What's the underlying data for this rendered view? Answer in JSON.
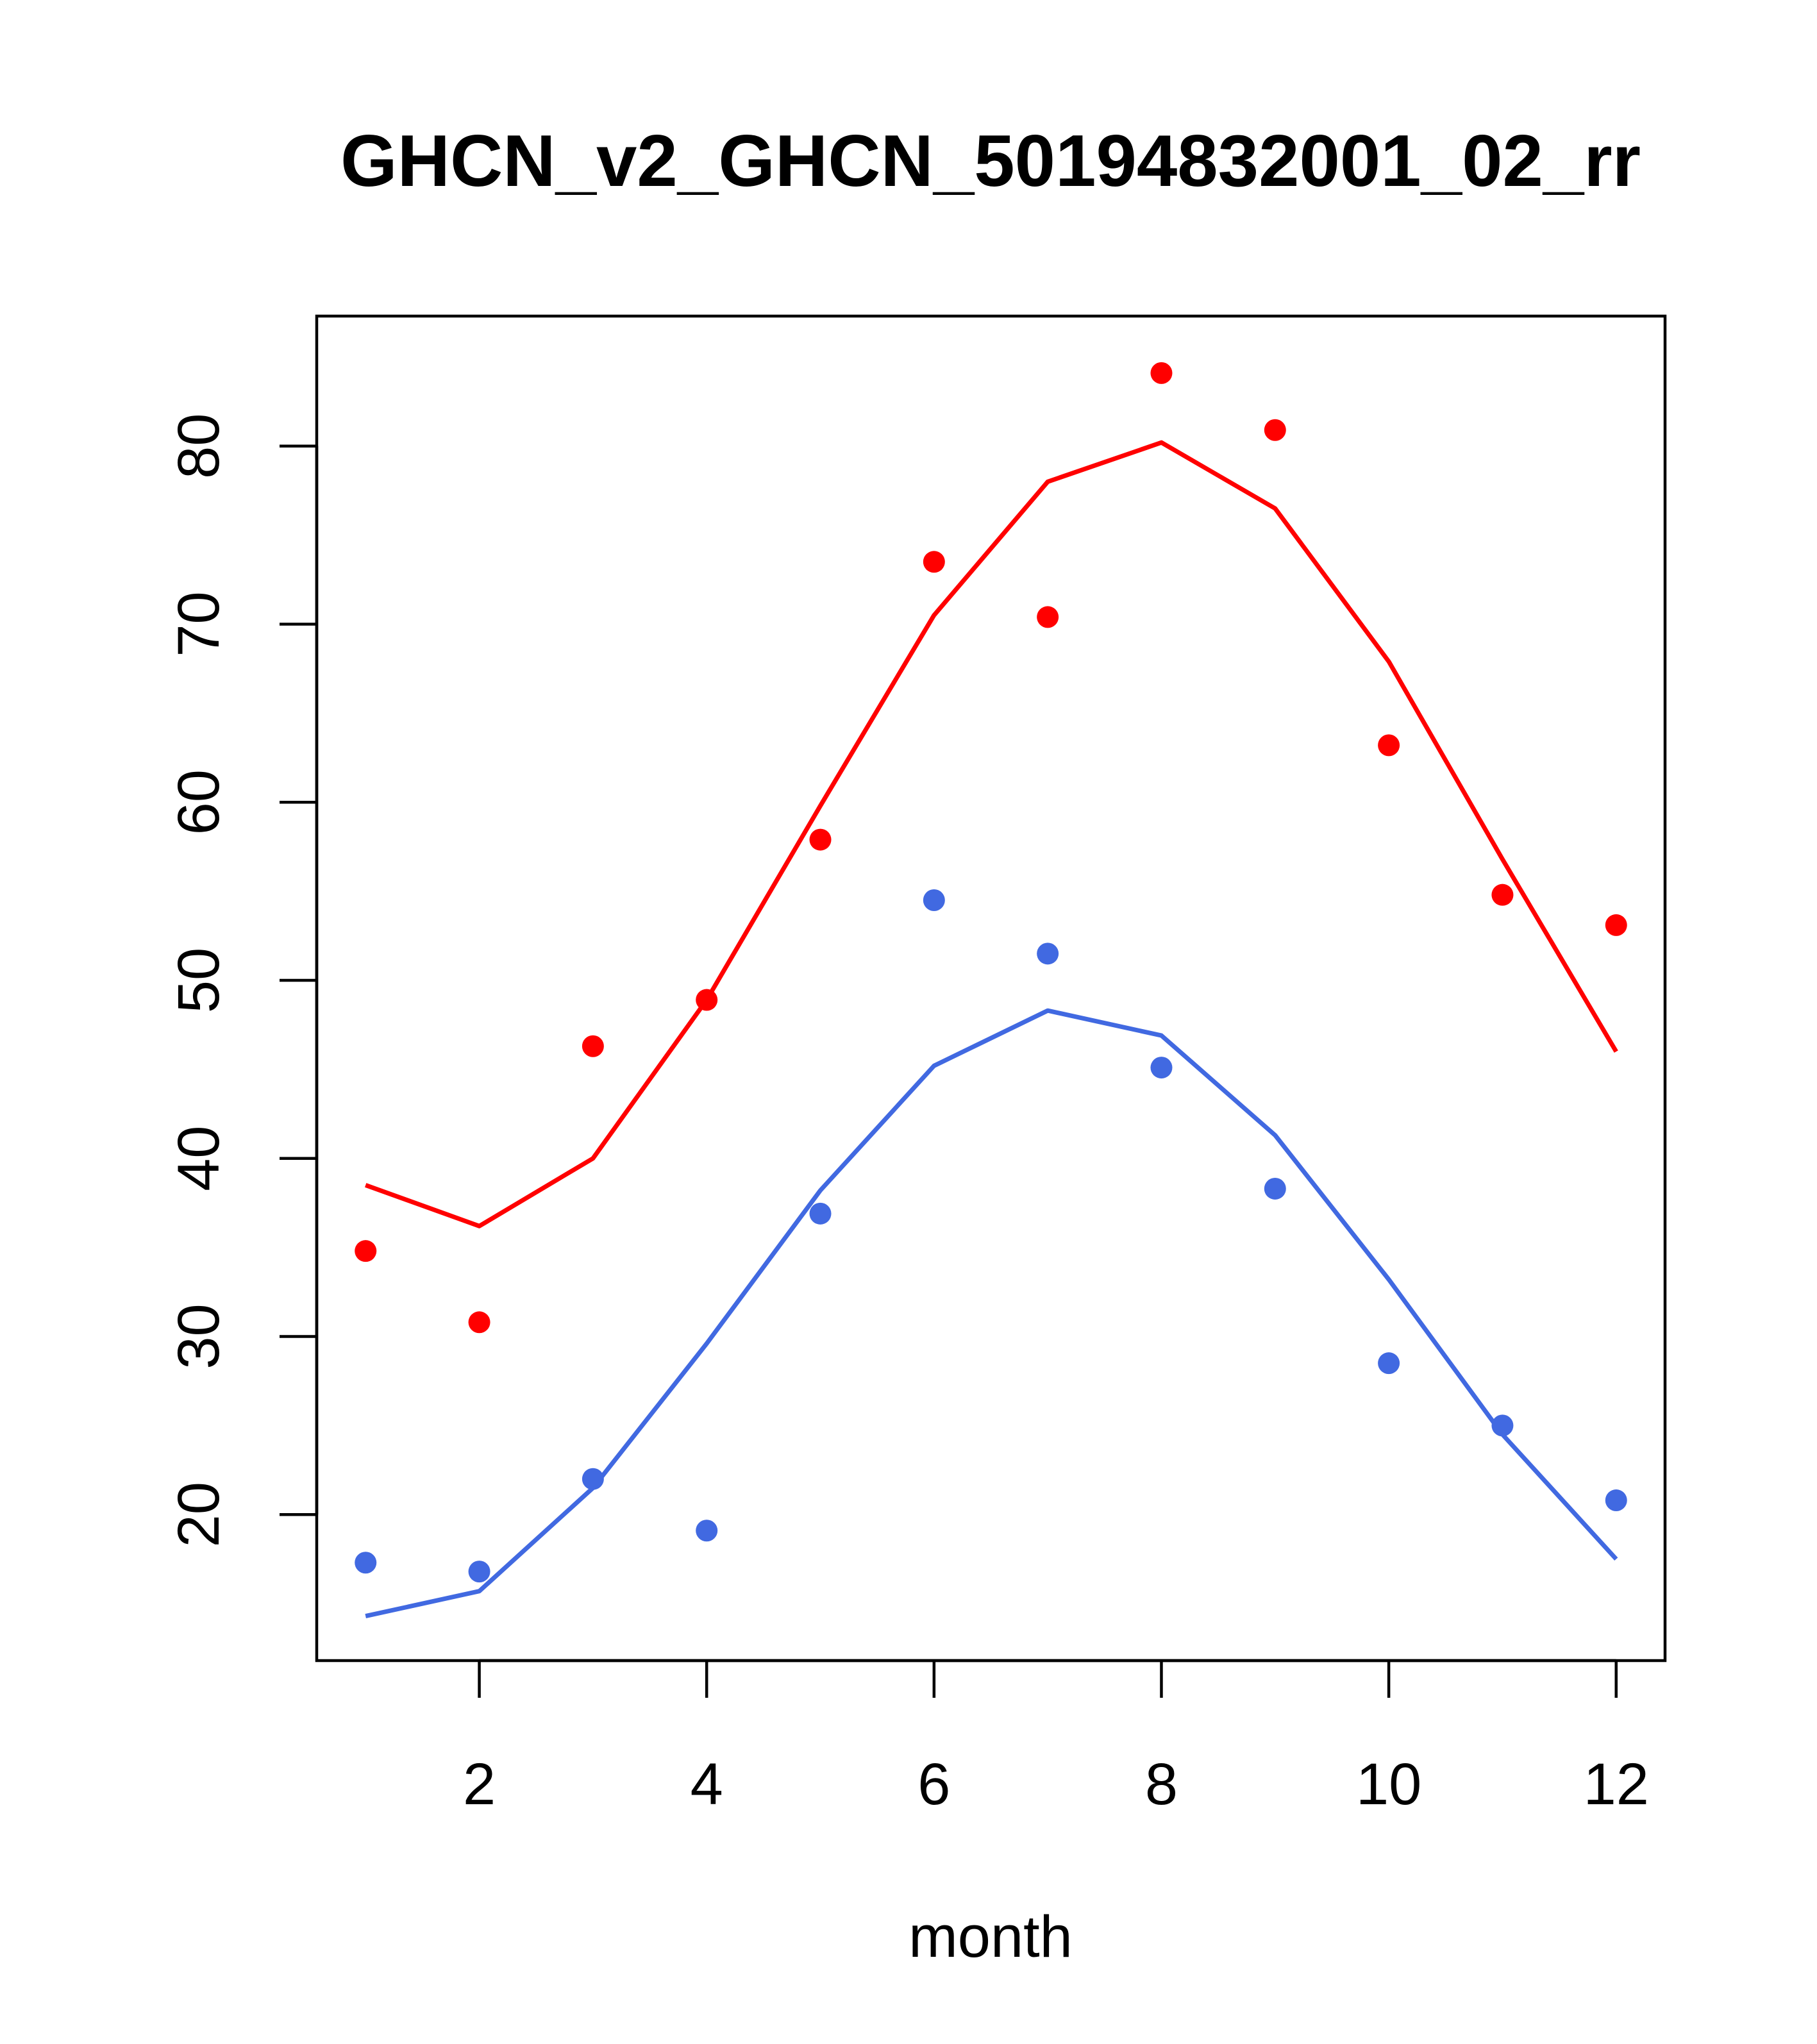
{
  "chart_data": {
    "type": "line",
    "title": "GHCN_v2_GHCN_50194832001_02_rr",
    "xlabel": "month",
    "ylabel": "",
    "xlim": [
      0.57,
      12.43
    ],
    "ylim": [
      11.8,
      87.3
    ],
    "xticks": [
      2,
      4,
      6,
      8,
      10,
      12
    ],
    "yticks": [
      20,
      30,
      40,
      50,
      60,
      70,
      80
    ],
    "x": [
      1,
      2,
      3,
      4,
      5,
      6,
      7,
      8,
      9,
      10,
      11,
      12
    ],
    "series": [
      {
        "color": "#ff0000",
        "line": [
          38.5,
          36.2,
          40.0,
          48.9,
          59.8,
          70.5,
          78.0,
          80.2,
          76.5,
          67.9,
          56.8,
          46.0
        ],
        "points": [
          34.8,
          30.8,
          46.3,
          48.9,
          57.9,
          73.5,
          70.4,
          84.1,
          80.9,
          63.2,
          54.8,
          53.1
        ]
      },
      {
        "color": "#4169e1",
        "line": [
          14.3,
          15.7,
          21.5,
          29.6,
          38.2,
          45.2,
          48.3,
          46.9,
          41.3,
          33.2,
          24.5,
          17.5
        ],
        "points": [
          17.3,
          16.8,
          22.0,
          19.1,
          36.9,
          54.5,
          51.5,
          45.1,
          38.3,
          28.5,
          25.0,
          20.8
        ]
      }
    ]
  }
}
